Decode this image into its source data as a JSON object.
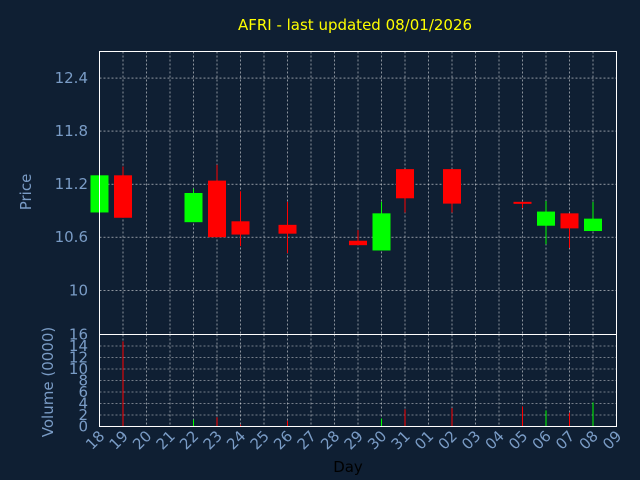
{
  "colors": {
    "background": "#0f1f33",
    "up": "#00ff00",
    "down": "#ff0000",
    "title": "#ffff00",
    "axis_text": "#7a9cc6",
    "grid": "#ffffff"
  },
  "chart_data": {
    "type": "candlestick",
    "title": "AFRI - last updated 08/01/2026",
    "xlabel": "Day",
    "grid": true,
    "categories": [
      "18",
      "19",
      "20",
      "21",
      "22",
      "23",
      "24",
      "25",
      "26",
      "27",
      "28",
      "29",
      "30",
      "31",
      "01",
      "02",
      "03",
      "04",
      "05",
      "06",
      "07",
      "08",
      "09"
    ],
    "price_panel": {
      "ylabel": "Price",
      "ylim": [
        9.5,
        12.7
      ],
      "yticks": [
        10,
        10.6,
        11.2,
        11.8,
        12.4
      ],
      "ytick_labels": [
        "10",
        "10.6",
        "11.2",
        "11.8",
        "12.4"
      ],
      "candles": [
        {
          "x": "18",
          "open": 10.88,
          "high": 11.3,
          "low": 10.88,
          "close": 11.3,
          "direction": "up"
        },
        {
          "x": "19",
          "open": 11.3,
          "high": 11.4,
          "low": 10.82,
          "close": 10.82,
          "direction": "down"
        },
        {
          "x": "22",
          "open": 10.77,
          "high": 11.15,
          "low": 10.77,
          "close": 11.1,
          "direction": "up"
        },
        {
          "x": "23",
          "open": 11.24,
          "high": 11.42,
          "low": 10.6,
          "close": 10.6,
          "direction": "down"
        },
        {
          "x": "24",
          "open": 10.78,
          "high": 11.12,
          "low": 10.5,
          "close": 10.63,
          "direction": "down"
        },
        {
          "x": "26",
          "open": 10.74,
          "high": 11.0,
          "low": 10.42,
          "close": 10.64,
          "direction": "down"
        },
        {
          "x": "29",
          "open": 10.56,
          "high": 10.68,
          "low": 10.51,
          "close": 10.51,
          "direction": "down"
        },
        {
          "x": "30",
          "open": 10.45,
          "high": 11.0,
          "low": 10.45,
          "close": 10.87,
          "direction": "up"
        },
        {
          "x": "31",
          "open": 11.37,
          "high": 11.37,
          "low": 10.88,
          "close": 11.04,
          "direction": "down"
        },
        {
          "x": "02",
          "open": 11.37,
          "high": 11.37,
          "low": 10.88,
          "close": 10.98,
          "direction": "down"
        },
        {
          "x": "05",
          "open": 11.0,
          "high": 11.0,
          "low": 10.93,
          "close": 10.99,
          "direction": "down"
        },
        {
          "x": "06",
          "open": 10.73,
          "high": 11.01,
          "low": 10.52,
          "close": 10.89,
          "direction": "up"
        },
        {
          "x": "07",
          "open": 10.87,
          "high": 10.87,
          "low": 10.48,
          "close": 10.7,
          "direction": "down"
        },
        {
          "x": "08",
          "open": 10.67,
          "high": 11.0,
          "low": 10.67,
          "close": 10.81,
          "direction": "up"
        }
      ]
    },
    "volume_panel": {
      "ylabel": "Volume (0000)",
      "ylim": [
        0,
        16
      ],
      "yticks": [
        0,
        2,
        4,
        6,
        8,
        10,
        12,
        14,
        16
      ],
      "ytick_labels": [
        "0",
        "2",
        "4",
        "6",
        "8",
        "10",
        "12",
        "14",
        "16"
      ],
      "bars": [
        {
          "x": "19",
          "value": 14.8,
          "direction": "down"
        },
        {
          "x": "22",
          "value": 1.2,
          "direction": "up"
        },
        {
          "x": "23",
          "value": 1.6,
          "direction": "down"
        },
        {
          "x": "24",
          "value": 0.3,
          "direction": "down"
        },
        {
          "x": "26",
          "value": 1.0,
          "direction": "down"
        },
        {
          "x": "30",
          "value": 1.4,
          "direction": "up"
        },
        {
          "x": "31",
          "value": 3.0,
          "direction": "down"
        },
        {
          "x": "02",
          "value": 3.2,
          "direction": "down"
        },
        {
          "x": "05",
          "value": 3.5,
          "direction": "down"
        },
        {
          "x": "06",
          "value": 2.8,
          "direction": "up"
        },
        {
          "x": "07",
          "value": 2.4,
          "direction": "down"
        },
        {
          "x": "08",
          "value": 4.2,
          "direction": "up"
        }
      ]
    }
  }
}
